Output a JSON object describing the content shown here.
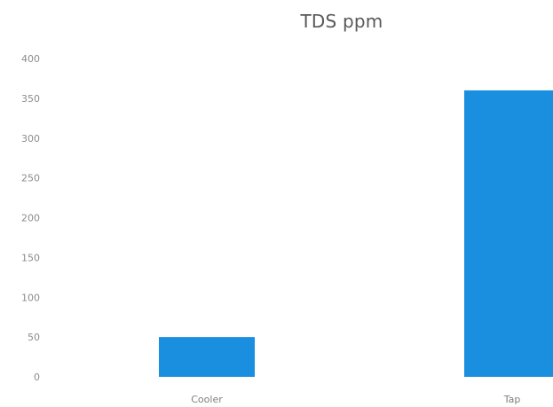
{
  "chart_data": {
    "type": "bar",
    "title": "TDS ppm",
    "categories": [
      "Cooler",
      "Tap"
    ],
    "values": [
      50,
      360
    ],
    "xlabel": "",
    "ylabel": "",
    "ylim": [
      0,
      400
    ],
    "yticks": [
      "0",
      "50",
      "100",
      "150",
      "200",
      "250",
      "300",
      "350",
      "400"
    ],
    "grid": false,
    "legend": "none",
    "bar_color": "#1a8fe0"
  }
}
